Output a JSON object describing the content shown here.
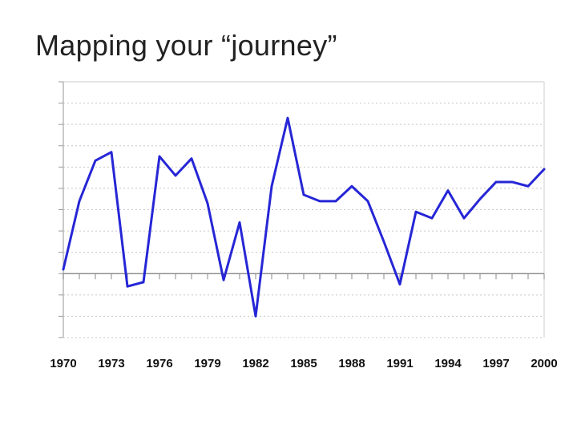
{
  "slide": {
    "title": "Mapping your “journey”"
  },
  "chart_data": {
    "type": "line",
    "title": "",
    "xlabel": "",
    "ylabel": "",
    "grid": true,
    "legend": "none",
    "line_color": "#2626d6",
    "xlim": [
      1970,
      2000
    ],
    "ylim": [
      -3,
      9
    ],
    "x_tick_labels": [
      "1970",
      "1973",
      "1976",
      "1979",
      "1982",
      "1985",
      "1988",
      "1991",
      "1994",
      "1997",
      "2000"
    ],
    "x": [
      1970,
      1971,
      1972,
      1973,
      1974,
      1975,
      1976,
      1977,
      1978,
      1979,
      1980,
      1981,
      1982,
      1983,
      1984,
      1985,
      1986,
      1987,
      1988,
      1989,
      1990,
      1991,
      1992,
      1993,
      1994,
      1995,
      1996,
      1997,
      1998,
      1999,
      2000
    ],
    "values": [
      0.2,
      3.4,
      5.3,
      5.7,
      -0.6,
      -0.4,
      5.5,
      4.6,
      5.4,
      3.3,
      -0.3,
      2.4,
      -2.0,
      4.1,
      7.3,
      3.7,
      3.4,
      3.4,
      4.1,
      3.4,
      1.5,
      -0.5,
      2.9,
      2.6,
      3.9,
      2.6,
      3.5,
      4.3,
      4.3,
      4.1,
      4.9
    ]
  }
}
